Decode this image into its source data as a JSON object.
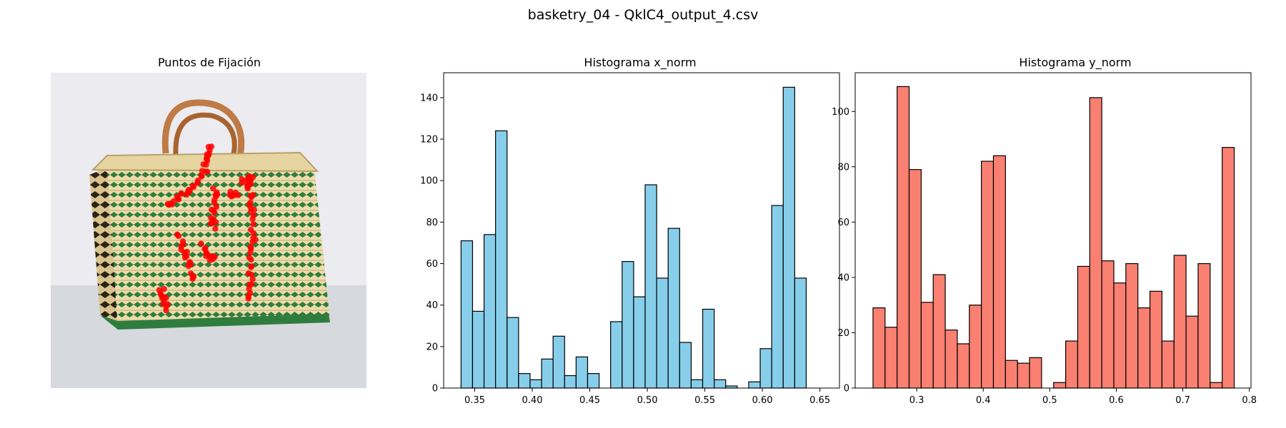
{
  "figure": {
    "suptitle": "basketry_04 - QklC4_output_4.csv"
  },
  "image_panel": {
    "title": "Puntos de Fijación",
    "colors": {
      "points": "#ff0000",
      "background": "#ecebef",
      "floor": "#d6d9de",
      "weave_light": "#ecdcaa",
      "weave_green": "#2e7d3e",
      "handle": "#c07a45"
    }
  },
  "chart_data": [
    {
      "type": "bar",
      "title": "Histograma x_norm",
      "xlabel": "",
      "ylabel": "",
      "bar_color": "#87ceeb",
      "edge_color": "#000000",
      "xlim": [
        0.323,
        0.667
      ],
      "ylim": [
        0,
        152
      ],
      "xticks": [
        0.35,
        0.4,
        0.45,
        0.5,
        0.55,
        0.6,
        0.65
      ],
      "xtick_labels": [
        "0.35",
        "0.40",
        "0.45",
        "0.50",
        "0.55",
        "0.60",
        "0.65"
      ],
      "yticks": [
        0,
        20,
        40,
        60,
        80,
        100,
        120,
        140
      ],
      "ytick_labels": [
        "0",
        "20",
        "40",
        "60",
        "80",
        "100",
        "120",
        "140"
      ],
      "bin_start": 0.3381,
      "bin_width": 0.01,
      "values": [
        71,
        37,
        74,
        124,
        34,
        7,
        4,
        14,
        25,
        6,
        15,
        7,
        0,
        32,
        61,
        44,
        98,
        53,
        77,
        22,
        4,
        38,
        4,
        1,
        0,
        3,
        19,
        88,
        145,
        53
      ]
    },
    {
      "type": "bar",
      "title": "Histograma y_norm",
      "xlabel": "",
      "ylabel": "",
      "bar_color": "#fa8072",
      "edge_color": "#000000",
      "xlim": [
        0.2075,
        0.8025
      ],
      "ylim": [
        0,
        114
      ],
      "xticks": [
        0.3,
        0.4,
        0.5,
        0.6,
        0.7,
        0.8
      ],
      "xtick_labels": [
        "0.3",
        "0.4",
        "0.5",
        "0.6",
        "0.7",
        "0.8"
      ],
      "yticks": [
        0,
        20,
        40,
        60,
        80,
        100
      ],
      "ytick_labels": [
        "0",
        "20",
        "40",
        "60",
        "80",
        "100"
      ],
      "bin_start": 0.2343,
      "bin_width": 0.0181,
      "values": [
        29,
        22,
        109,
        79,
        31,
        41,
        21,
        16,
        30,
        82,
        84,
        10,
        9,
        11,
        0,
        2,
        17,
        44,
        105,
        46,
        38,
        45,
        29,
        35,
        17,
        48,
        26,
        45,
        2,
        87
      ]
    }
  ]
}
